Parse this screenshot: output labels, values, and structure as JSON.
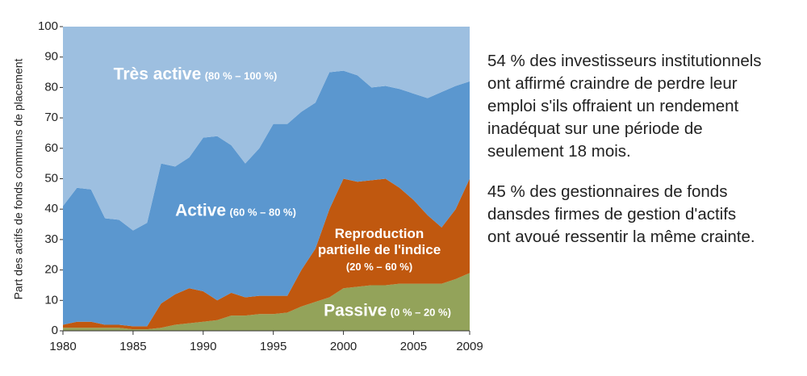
{
  "chart_data": {
    "type": "stacked-area",
    "y_label": "Part des actifs de fonds communs de placement",
    "x": [
      1980,
      1981,
      1982,
      1983,
      1984,
      1985,
      1986,
      1987,
      1988,
      1989,
      1990,
      1991,
      1992,
      1993,
      1994,
      1995,
      1996,
      1997,
      1998,
      1999,
      2000,
      2001,
      2002,
      2003,
      2004,
      2005,
      2006,
      2007,
      2008,
      2009
    ],
    "xlim": [
      1980,
      2009
    ],
    "xticks": [
      1980,
      1985,
      1990,
      1995,
      2000,
      2005,
      2009
    ],
    "ylim": [
      0,
      100
    ],
    "yticks": [
      0,
      10,
      20,
      30,
      40,
      50,
      60,
      70,
      80,
      90,
      100
    ],
    "series": [
      {
        "name": "Passive",
        "range": "(0 % – 20 %)",
        "color": "#93a35a",
        "values": [
          1,
          1,
          1,
          1,
          1,
          0.5,
          0.5,
          1,
          2,
          2.5,
          3,
          3.5,
          5,
          5,
          5.5,
          5.5,
          6,
          8,
          9.5,
          11,
          14,
          14.5,
          15,
          15,
          15.5,
          15.5,
          15.5,
          15.5,
          17,
          19
        ]
      },
      {
        "name": "Reproduction partielle de l'indice",
        "range": "(20 % – 60 %)",
        "color": "#c0580f",
        "values": [
          1,
          2,
          2,
          1,
          1,
          1,
          1,
          8,
          10,
          11.5,
          10,
          6.5,
          7.5,
          6,
          6,
          6,
          5.5,
          12,
          17.5,
          29,
          36,
          34.5,
          34.5,
          35,
          31.5,
          27.5,
          22.5,
          18.5,
          23,
          31
        ]
      },
      {
        "name": "Active",
        "range": "(60 % – 80 %)",
        "color": "#5b97cf",
        "values": [
          39,
          44,
          43.5,
          35,
          34.5,
          31.5,
          34,
          46,
          42,
          43,
          50.5,
          54,
          48.5,
          44,
          48.5,
          56.5,
          56.5,
          52,
          48,
          45,
          35.5,
          35,
          30.5,
          30.5,
          32.5,
          35,
          38.5,
          44.5,
          40.5,
          32
        ]
      },
      {
        "name": "Très active",
        "range": "(80 % – 100 %)",
        "color": "#9dbfe0",
        "values": [
          59,
          53,
          53.5,
          63,
          63.5,
          67,
          64.5,
          45,
          46,
          43,
          36.5,
          36,
          39,
          45,
          40,
          32,
          32,
          28,
          25,
          15,
          14.5,
          16,
          20,
          19.5,
          20.5,
          22,
          23.5,
          21.5,
          19.5,
          18
        ]
      }
    ]
  },
  "notes": [
    [
      "54 % des investisseurs institutionnels",
      "ont affirmé craindre de perdre leur",
      "emploi s'ils offraient un rendement",
      "inadéquat sur une période de",
      "seulement 18 mois."
    ],
    [
      "45 % des gestionnaires de fonds",
      "dansdes firmes de gestion d'actifs",
      "ont avoué ressentir la même crainte."
    ]
  ]
}
